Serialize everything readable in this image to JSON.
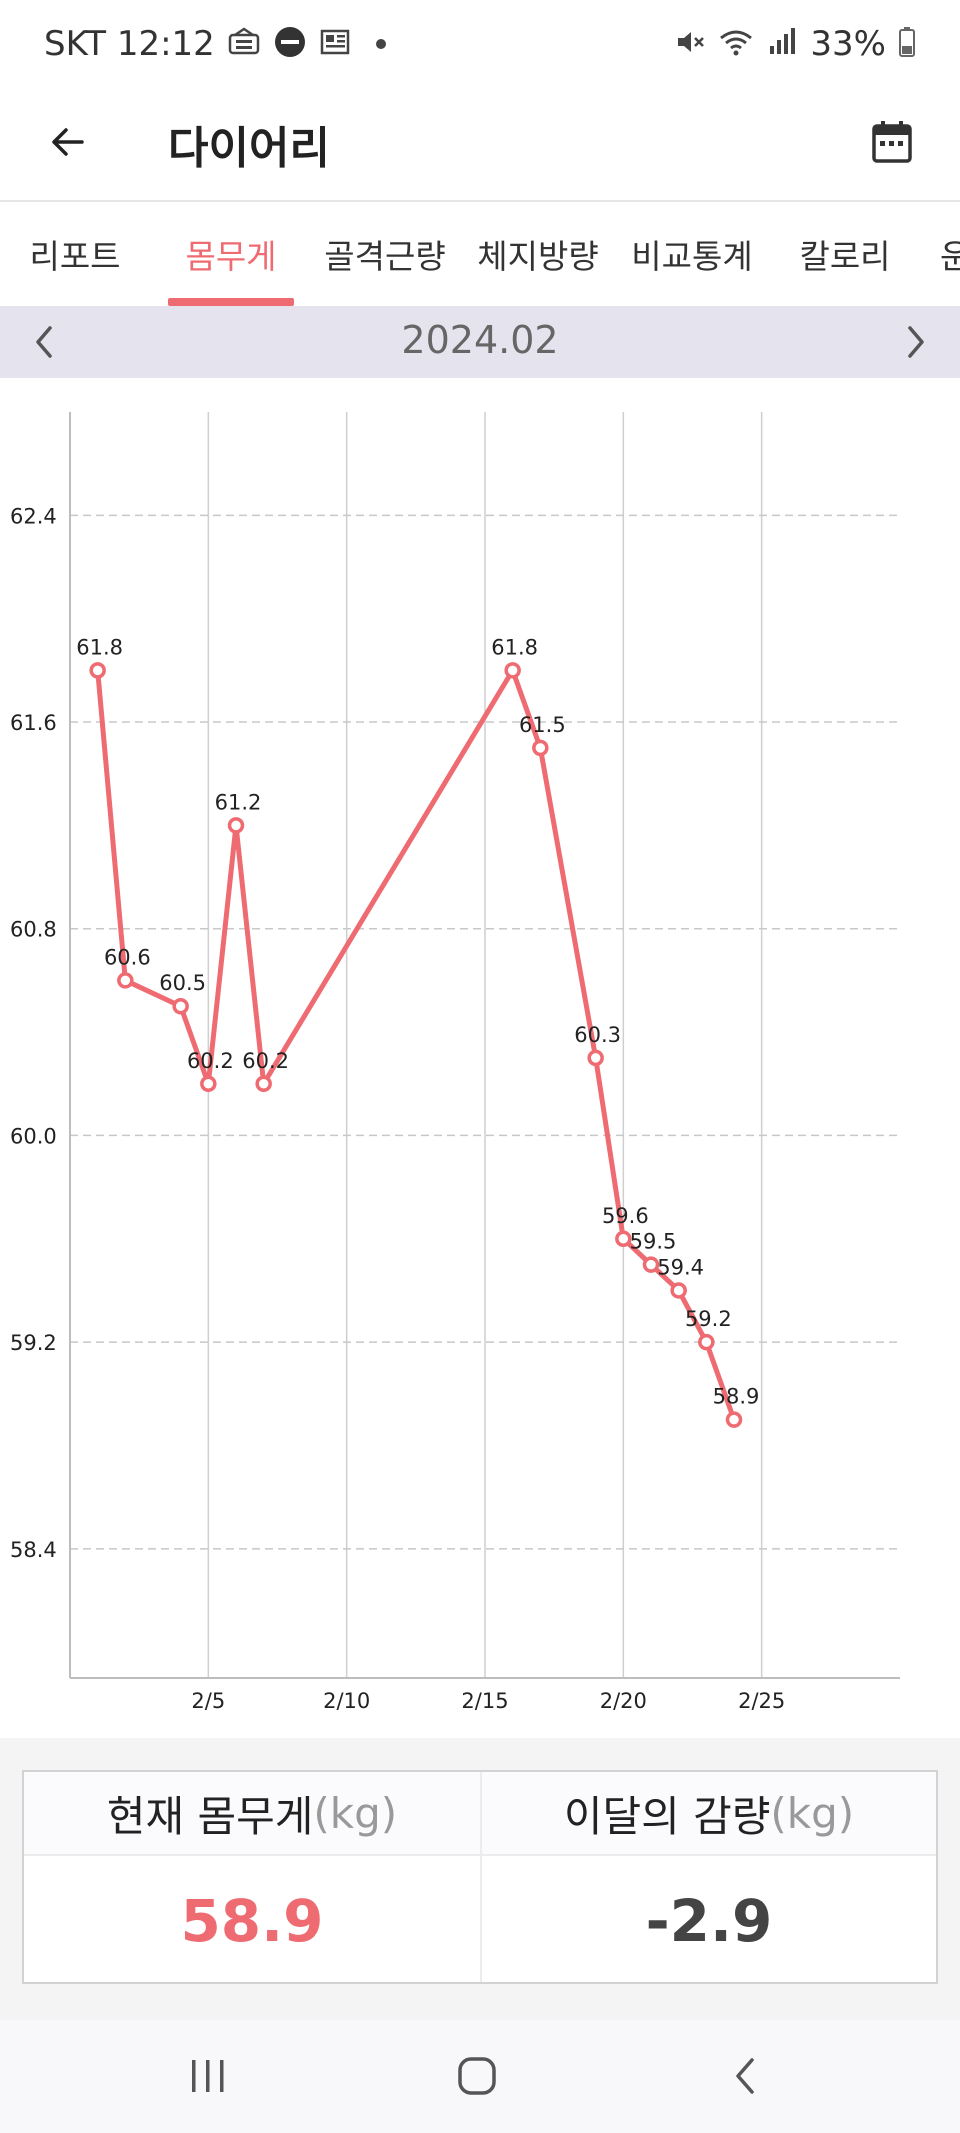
{
  "status_bar": {
    "carrier_time": "SKT 12:12",
    "battery": "33%",
    "left_icons": [
      "news-icon",
      "do-not-disturb-icon",
      "newspaper-icon",
      "dot-icon"
    ],
    "right_icons": [
      "mute-icon",
      "wifi-icon",
      "signal-icon",
      "battery-icon"
    ]
  },
  "app_bar": {
    "title": "다이어리"
  },
  "tabs": [
    {
      "label": "리포트",
      "active": false
    },
    {
      "label": "몸무게",
      "active": true
    },
    {
      "label": "골격근량",
      "active": false
    },
    {
      "label": "체지방량",
      "active": false
    },
    {
      "label": "비교통계",
      "active": false
    },
    {
      "label": "칼로리",
      "active": false
    },
    {
      "label": "운",
      "active": false
    }
  ],
  "month": {
    "label": "2024.02"
  },
  "colors": {
    "accent": "#ef6b72",
    "month_bar": "#e5e3ee",
    "value_dark": "#444444"
  },
  "chart_data": {
    "type": "line",
    "x_tick_labels": [
      "2/5",
      "2/10",
      "2/15",
      "2/20",
      "2/25"
    ],
    "x_ticks": [
      5,
      10,
      15,
      20,
      25
    ],
    "xlim": [
      0,
      30
    ],
    "y_tick_labels": [
      "58.4",
      "59.2",
      "60.0",
      "60.8",
      "61.6",
      "62.4"
    ],
    "y_ticks": [
      58.4,
      59.2,
      60.0,
      60.8,
      61.6,
      62.4
    ],
    "ylim": [
      57.9,
      62.8
    ],
    "grid": true,
    "series": [
      {
        "color": "#ef6b72",
        "points": [
          {
            "x": 1,
            "y": 61.8,
            "label": "61.8"
          },
          {
            "x": 2,
            "y": 60.6,
            "label": "60.6"
          },
          {
            "x": 4,
            "y": 60.5,
            "label": "60.5"
          },
          {
            "x": 5,
            "y": 60.2,
            "label": "60.2"
          },
          {
            "x": 6,
            "y": 61.2,
            "label": "61.2"
          },
          {
            "x": 7,
            "y": 60.2,
            "label": "60.2"
          },
          {
            "x": 16,
            "y": 61.8,
            "label": "61.8"
          },
          {
            "x": 17,
            "y": 61.5,
            "label": "61.5"
          },
          {
            "x": 19,
            "y": 60.3,
            "label": "60.3"
          },
          {
            "x": 20,
            "y": 59.6,
            "label": "59.6"
          },
          {
            "x": 21,
            "y": 59.5,
            "label": "59.5"
          },
          {
            "x": 22,
            "y": 59.4,
            "label": "59.4"
          },
          {
            "x": 23,
            "y": 59.2,
            "label": "59.2"
          },
          {
            "x": 24,
            "y": 58.9,
            "label": "58.9"
          }
        ]
      }
    ]
  },
  "summary": {
    "current": {
      "label": "현재 몸무게",
      "unit": "(kg)",
      "value": "58.9"
    },
    "loss": {
      "label": "이달의 감량",
      "unit": "(kg)",
      "value": "-2.9"
    }
  },
  "nav": {
    "icons": [
      "recent-apps-icon",
      "home-icon",
      "back-nav-icon"
    ]
  }
}
